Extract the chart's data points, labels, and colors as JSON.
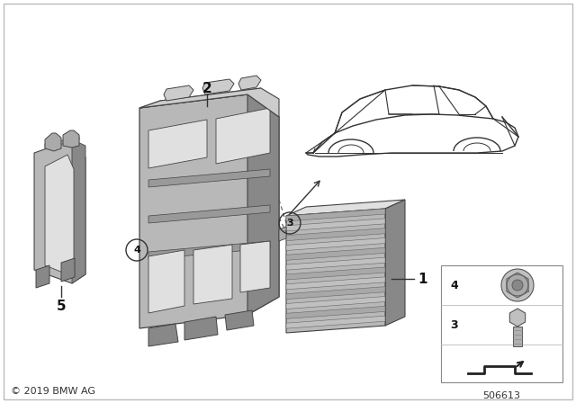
{
  "copyright": "© 2019 BMW AG",
  "part_number": "506613",
  "bg_color": "#ffffff",
  "border_color": "#bbbbbb",
  "text_color": "#111111",
  "fig_width": 6.4,
  "fig_height": 4.48,
  "dpi": 100,
  "gray_dark": "#888888",
  "gray_mid": "#aaaaaa",
  "gray_light": "#cccccc",
  "gray_lighter": "#e0e0e0",
  "gray_body": "#b8b8b8",
  "line_color": "#444444"
}
